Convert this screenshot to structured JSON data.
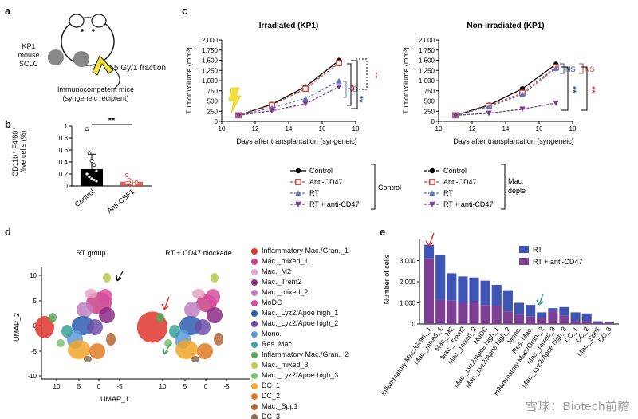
{
  "panels": {
    "a": "a",
    "b": "b",
    "c": "c",
    "d": "d",
    "e": "e"
  },
  "panel_a": {
    "model_line1": "KP1",
    "model_line2": "mouse",
    "model_line3": "SCLC",
    "dose": "5 Gy/1 fraction",
    "host_line1": "Immunocompetent mice",
    "host_line2": "(syngeneic recipient)"
  },
  "panel_b": {
    "ylabel_line1": "CD11b⁺ F4/80⁺",
    "ylabel_line2": "/live cells (%)",
    "sig": "**"
  },
  "panel_c": {
    "xlabel": "Days after transplantation (syngeneic)",
    "ylabel": "Tumor volume (mm³)",
    "left_title": "Irradiated (KP1)",
    "right_title": "Non-irradiated (KP1)",
    "left_sig": {
      "ns": "NS",
      "s1": "**",
      "s2": "**",
      "s3": "**"
    },
    "right_sig": {
      "ns1": "NS",
      "ns2": "NS",
      "s1": "**",
      "s2": "**"
    },
    "legend_left": [
      "Control",
      "Anti-CD47",
      "RT",
      "RT + anti-CD47"
    ],
    "legend_left_group": "Control",
    "legend_right": [
      "Control",
      "Anti-CD47",
      "RT",
      "RT + anti-CD47"
    ],
    "legend_right_group1": "Mac.",
    "legend_right_group2": "depleted"
  },
  "panel_d": {
    "left_title": "RT group",
    "right_title": "RT + CD47 blockade",
    "xlabel": "UMAP_1",
    "ylabel": "UMAP_2",
    "legend": [
      {
        "label": "Inflammatory Mac./Gran._1",
        "color": "#e0352e"
      },
      {
        "label": "Mac._mixed_1",
        "color": "#c83f86"
      },
      {
        "label": "Mac._M2",
        "color": "#e8a4c4"
      },
      {
        "label": "Mac._Trem2",
        "color": "#8c2a86"
      },
      {
        "label": "Mac._mixed_2",
        "color": "#c07fc0"
      },
      {
        "label": "MoDC",
        "color": "#d94d9f"
      },
      {
        "label": "Mac._Lyz2/Apoe high_1",
        "color": "#2e5fb0"
      },
      {
        "label": "Mac._Lyz2/Apoe high_2",
        "color": "#6d4fa8"
      },
      {
        "label": "Mono.",
        "color": "#5d9bd8"
      },
      {
        "label": "Res. Mac.",
        "color": "#3aa39a"
      },
      {
        "label": "Inflammatory Mac./Gran._2",
        "color": "#56a957"
      },
      {
        "label": "Mac._mixed_3",
        "color": "#b9c94a"
      },
      {
        "label": "Mac._Lyz2/Apoe high_3",
        "color": "#7ac070"
      },
      {
        "label": "DC_1",
        "color": "#f0a62c"
      },
      {
        "label": "DC_2",
        "color": "#e07a26"
      },
      {
        "label": "Mac._Spp1",
        "color": "#b46a3c"
      },
      {
        "label": "DC_3",
        "color": "#8a6a52"
      }
    ]
  },
  "chart_data": [
    {
      "type": "bar",
      "title": "",
      "categories": [
        "Control",
        "Anti-CSF1"
      ],
      "values": [
        0.28,
        0.07
      ],
      "ylabel": "CD11b+ F4/80+ /live cells (%)",
      "ylim": [
        0,
        1.0
      ],
      "yticks": [
        0,
        0.2,
        0.4,
        0.6,
        0.8,
        1.0
      ],
      "points": [
        [
          0.95,
          0.55,
          0.42,
          0.35,
          0.25,
          0.2,
          0.15,
          0.12,
          0.1,
          0.08
        ],
        [
          0.18,
          0.1,
          0.08,
          0.07,
          0.06,
          0.05,
          0.05,
          0.04,
          0.03
        ]
      ],
      "errors": [
        0.25,
        0.03
      ],
      "significance": "**"
    },
    {
      "type": "line",
      "title": "Irradiated (KP1)",
      "xlabel": "Days after transplantation (syngeneic)",
      "ylabel": "Tumor volume (mm³)",
      "x": [
        11,
        13,
        15,
        17
      ],
      "xlim": [
        10,
        18
      ],
      "ylim": [
        0,
        2000
      ],
      "xticks": [
        10,
        12,
        14,
        16,
        18
      ],
      "yticks": [
        0,
        250,
        500,
        750,
        1000,
        1250,
        1500,
        1750,
        2000
      ],
      "series": [
        {
          "name": "Control",
          "values": [
            150,
            420,
            850,
            1490
          ],
          "color": "#000000",
          "marker": "circle"
        },
        {
          "name": "Anti-CD47",
          "values": [
            150,
            400,
            800,
            1430
          ],
          "color": "#d9443b",
          "marker": "square"
        },
        {
          "name": "RT",
          "values": [
            150,
            330,
            560,
            990
          ],
          "color": "#5a74c0",
          "marker": "triangle"
        },
        {
          "name": "RT + anti-CD47",
          "values": [
            150,
            260,
            430,
            850
          ],
          "color": "#7d3f93",
          "marker": "triangle-down"
        }
      ]
    },
    {
      "type": "line",
      "title": "Non-irradiated (KP1)",
      "xlabel": "Days after transplantation (syngeneic)",
      "ylabel": "Tumor volume (mm³)",
      "x": [
        11,
        13,
        15,
        17
      ],
      "xlim": [
        10,
        18
      ],
      "ylim": [
        0,
        2000
      ],
      "xticks": [
        10,
        12,
        14,
        16,
        18
      ],
      "yticks": [
        0,
        250,
        500,
        750,
        1000,
        1250,
        1500,
        1750,
        2000
      ],
      "series": [
        {
          "name": "Control",
          "values": [
            150,
            400,
            800,
            1400
          ],
          "color": "#000000",
          "marker": "circle"
        },
        {
          "name": "Anti-CD47",
          "values": [
            150,
            380,
            700,
            1330
          ],
          "color": "#d9443b",
          "marker": "square"
        },
        {
          "name": "RT",
          "values": [
            150,
            360,
            660,
            1300
          ],
          "color": "#5a74c0",
          "marker": "triangle"
        },
        {
          "name": "RT + anti-CD47",
          "values": [
            150,
            200,
            300,
            450
          ],
          "color": "#7d3f93",
          "marker": "triangle-down"
        }
      ]
    },
    {
      "type": "bar",
      "stacked": true,
      "ylabel": "Number of cells",
      "ylim": [
        0,
        4000
      ],
      "yticks": [
        0,
        1000,
        2000,
        3000
      ],
      "legend": [
        "RT",
        "RT + anti-CD47"
      ],
      "categories": [
        "Inflammatory Mac./Gran._1",
        "Mac._mixed_1",
        "Mac._M2",
        "Mac._Trem2",
        "Mac._mixed_2",
        "MoDC",
        "Mac._Lyz2/Apoe high_1",
        "Mac._Lyz2/Apoe high_2",
        "Mono.",
        "Res. Mac.",
        "Inflammatory Mac./Gran._2",
        "Mac._mixed_3",
        "Mac._Lyz2/Apoe high_3",
        "DC_1",
        "DC_2",
        "Mac._Spp1",
        "DC_3"
      ],
      "series": [
        {
          "name": "RT + anti-CD47",
          "color": "#7d3f93",
          "values": [
            3100,
            1150,
            1100,
            1000,
            1050,
            900,
            850,
            600,
            450,
            350,
            300,
            600,
            400,
            150,
            150,
            80,
            60
          ]
        },
        {
          "name": "RT",
          "color": "#3f55b5",
          "values": [
            650,
            2100,
            1300,
            1250,
            1150,
            1150,
            1000,
            1000,
            550,
            550,
            250,
            150,
            400,
            400,
            350,
            50,
            30
          ]
        }
      ]
    }
  ],
  "watermark": "雪球：Biotech前瞻"
}
